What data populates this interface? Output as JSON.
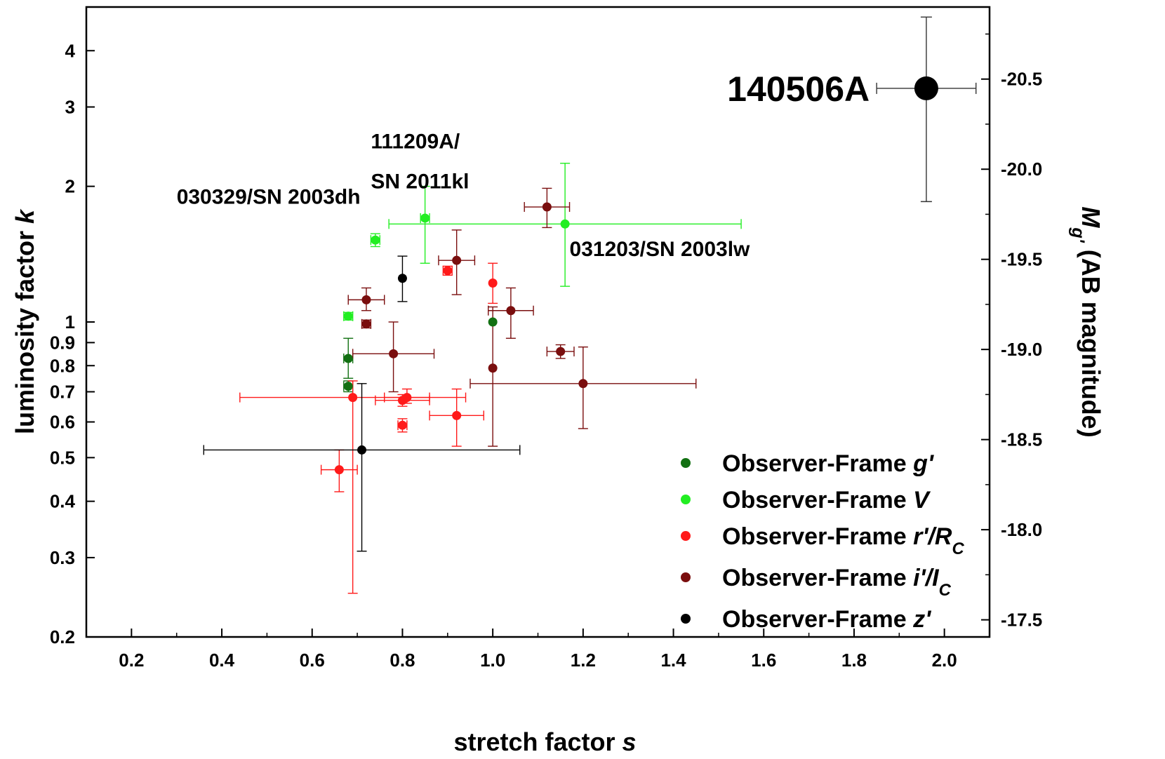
{
  "chart_data": {
    "type": "scatter",
    "x_axis": {
      "label_text": "stretch factor ",
      "label_var": "s",
      "range": [
        0.1,
        2.1
      ],
      "ticks": [
        0.2,
        0.4,
        0.6,
        0.8,
        1.0,
        1.2,
        1.4,
        1.6,
        1.8,
        2.0
      ],
      "tick_labels": [
        "0.2",
        "0.4",
        "0.6",
        "0.8",
        "1.0",
        "1.2",
        "1.4",
        "1.6",
        "1.8",
        "2.0"
      ]
    },
    "y_axis": {
      "label_text": "luminosity factor ",
      "label_var": "k",
      "scale": "log",
      "range": [
        0.2,
        5.0
      ],
      "ticks": [
        0.2,
        0.3,
        0.4,
        0.5,
        0.6,
        0.7,
        0.8,
        0.9,
        1,
        2,
        3,
        4
      ],
      "tick_labels": [
        "0.2",
        "0.3",
        "0.4",
        "0.5",
        "0.6",
        "0.7",
        "0.8",
        "0.9",
        "1",
        "2",
        "3",
        "4"
      ]
    },
    "y2_axis": {
      "label_var": "M",
      "label_sub": "g'",
      "label_text": " (AB magnitude)",
      "ticks": [
        -17.5,
        -18.0,
        -18.5,
        -19.0,
        -19.5,
        -20.0,
        -20.5
      ],
      "tick_labels": [
        "-17.5",
        "-18.0",
        "-18.5",
        "-19.0",
        "-19.5",
        "-20.0",
        "-20.5"
      ],
      "k_at_magnitude_minus19": 0.869,
      "mag_per_log10k": -2.5
    },
    "series": [
      {
        "name_prefix": "Observer-Frame ",
        "name_parts": [
          {
            "t": "g'",
            "i": true
          }
        ],
        "color": "#127012",
        "points": [
          {
            "x": 0.68,
            "y": 0.83,
            "xerr": [
              0.01,
              0.01
            ],
            "yerr": [
              0.08,
              0.09
            ]
          },
          {
            "x": 0.68,
            "y": 0.72,
            "xerr": [
              0.01,
              0.01
            ],
            "yerr": [
              0.02,
              0.02
            ]
          },
          {
            "x": 1.0,
            "y": 1.0,
            "xerr": [
              0,
              0
            ],
            "yerr": [
              0,
              0
            ]
          }
        ]
      },
      {
        "name_prefix": "Observer-Frame ",
        "name_parts": [
          {
            "t": "V",
            "i": true
          }
        ],
        "color": "#22ee22",
        "points": [
          {
            "x": 0.68,
            "y": 1.03,
            "xerr": [
              0.01,
              0.01
            ],
            "yerr": [
              0.02,
              0.02
            ]
          },
          {
            "x": 0.74,
            "y": 1.52,
            "xerr": [
              0.01,
              0.01
            ],
            "yerr": [
              0.05,
              0.05
            ]
          },
          {
            "x": 0.85,
            "y": 1.7,
            "xerr": [
              0.01,
              0.01
            ],
            "yerr": [
              0.35,
              0.3
            ]
          },
          {
            "x": 1.16,
            "y": 1.65,
            "xerr": [
              0.39,
              0.39
            ],
            "yerr": [
              0.45,
              0.6
            ]
          }
        ]
      },
      {
        "name_prefix": "Observer-Frame ",
        "name_parts": [
          {
            "t": "r'/R",
            "i": true
          },
          {
            "t": "C",
            "i": true,
            "sub": true
          }
        ],
        "color": "#ff1a1a",
        "points": [
          {
            "x": 0.9,
            "y": 1.3,
            "xerr": [
              0.01,
              0.01
            ],
            "yerr": [
              0.03,
              0.03
            ]
          },
          {
            "x": 1.0,
            "y": 1.22,
            "xerr": [
              0,
              0
            ],
            "yerr": [
              0.12,
              0.13
            ]
          },
          {
            "x": 0.69,
            "y": 0.68,
            "xerr": [
              0.25,
              0.25
            ],
            "yerr": [
              0.43,
              0.06
            ]
          },
          {
            "x": 0.8,
            "y": 0.67,
            "xerr": [
              0.06,
              0.06
            ],
            "yerr": [
              0.02,
              0.02
            ]
          },
          {
            "x": 0.81,
            "y": 0.68,
            "xerr": [
              0.05,
              0.05
            ],
            "yerr": [
              0.02,
              0.03
            ]
          },
          {
            "x": 0.8,
            "y": 0.59,
            "xerr": [
              0.01,
              0.01
            ],
            "yerr": [
              0.02,
              0.02
            ]
          },
          {
            "x": 0.92,
            "y": 0.62,
            "xerr": [
              0.06,
              0.06
            ],
            "yerr": [
              0.09,
              0.09
            ]
          },
          {
            "x": 0.66,
            "y": 0.47,
            "xerr": [
              0.04,
              0.04
            ],
            "yerr": [
              0.05,
              0.05
            ]
          }
        ]
      },
      {
        "name_prefix": "Observer-Frame ",
        "name_parts": [
          {
            "t": "i'/I",
            "i": true
          },
          {
            "t": "C",
            "i": true,
            "sub": true
          }
        ],
        "color": "#7a0e0e",
        "points": [
          {
            "x": 1.12,
            "y": 1.8,
            "xerr": [
              0.05,
              0.05
            ],
            "yerr": [
              0.18,
              0.18
            ]
          },
          {
            "x": 0.92,
            "y": 1.37,
            "xerr": [
              0.04,
              0.04
            ],
            "yerr": [
              0.22,
              0.23
            ]
          },
          {
            "x": 0.72,
            "y": 1.12,
            "xerr": [
              0.04,
              0.04
            ],
            "yerr": [
              0.06,
              0.07
            ]
          },
          {
            "x": 0.72,
            "y": 0.99,
            "xerr": [
              0.01,
              0.01
            ],
            "yerr": [
              0.02,
              0.02
            ]
          },
          {
            "x": 1.04,
            "y": 1.06,
            "xerr": [
              0.05,
              0.05
            ],
            "yerr": [
              0.14,
              0.13
            ]
          },
          {
            "x": 0.78,
            "y": 0.85,
            "xerr": [
              0.09,
              0.09
            ],
            "yerr": [
              0.15,
              0.15
            ]
          },
          {
            "x": 1.15,
            "y": 0.86,
            "xerr": [
              0.03,
              0.03
            ],
            "yerr": [
              0.03,
              0.03
            ]
          },
          {
            "x": 1.0,
            "y": 0.79,
            "xerr": [
              0,
              0
            ],
            "yerr": [
              0.26,
              0.29
            ]
          },
          {
            "x": 1.2,
            "y": 0.73,
            "xerr": [
              0.25,
              0.25
            ],
            "yerr": [
              0.15,
              0.15
            ]
          }
        ]
      },
      {
        "name_prefix": "Observer-Frame ",
        "name_parts": [
          {
            "t": "z'",
            "i": true
          }
        ],
        "color": "#000000",
        "points": [
          {
            "x": 0.8,
            "y": 1.25,
            "xerr": [
              0,
              0
            ],
            "yerr": [
              0.14,
              0.15
            ]
          },
          {
            "x": 0.71,
            "y": 0.52,
            "xerr": [
              0.35,
              0.35
            ],
            "yerr": [
              0.21,
              0.21
            ]
          }
        ]
      }
    ],
    "highlight": {
      "label": "140506A",
      "x": 1.96,
      "y": 3.3,
      "xerr": [
        0.11,
        0.11
      ],
      "yerr": [
        1.45,
        1.45
      ],
      "color": "#000000"
    },
    "annotations": [
      {
        "text": "111209A/",
        "x": 0.73,
        "y": 2.43
      },
      {
        "text": "SN 2011kl",
        "x": 0.73,
        "y": 1.98
      },
      {
        "text": "030329/SN 2003dh",
        "x": 0.3,
        "y": 1.83
      },
      {
        "text": "031203/SN 2003lw",
        "x": 1.17,
        "y": 1.4
      }
    ],
    "legend_position": "bottom-right",
    "grid": false
  }
}
